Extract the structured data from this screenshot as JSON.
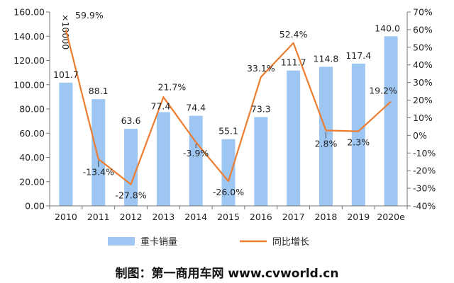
{
  "chart_data": {
    "type": "bar+line",
    "categories": [
      "2010",
      "2011",
      "2012",
      "2013",
      "2014",
      "2015",
      "2016",
      "2017",
      "2018",
      "2019",
      "2020e"
    ],
    "series": [
      {
        "name": "重卡销量",
        "type": "bar",
        "axis": "left",
        "color": "#9dc6f2",
        "values": [
          101.7,
          88.1,
          63.6,
          77.4,
          74.4,
          55.1,
          73.3,
          111.7,
          114.8,
          117.4,
          140.0
        ],
        "labels": [
          "101.7",
          "88.1",
          "63.6",
          "77.4",
          "74.4",
          "55.1",
          "73.3",
          "111.7",
          "114.8",
          "117.4",
          "140.0"
        ]
      },
      {
        "name": "同比增长",
        "type": "line",
        "axis": "right",
        "color": "#ed7d31",
        "values": [
          59.9,
          -13.4,
          -27.8,
          21.7,
          -3.9,
          -26.0,
          33.1,
          52.4,
          2.8,
          2.3,
          19.2
        ],
        "labels": [
          "59.9%",
          "-13.4%",
          "-27.8%",
          "21.7%",
          "-3.9%",
          "-26.0%",
          "33.1%",
          "52.4%",
          "2.8%",
          "2.3%",
          "19.2%"
        ]
      }
    ],
    "left_axis": {
      "unit": "×10000",
      "ylim": [
        0,
        160
      ],
      "ticks": [
        "0.00",
        "20.00",
        "40.00",
        "60.00",
        "80.00",
        "100.00",
        "120.00",
        "140.00",
        "160.00"
      ]
    },
    "right_axis": {
      "ylim": [
        -40,
        70
      ],
      "ticks": [
        "-40%",
        "-30%",
        "-20%",
        "-10%",
        "0%",
        "10%",
        "20%",
        "30%",
        "40%",
        "50%",
        "60%",
        "70%"
      ]
    },
    "legend": {
      "position": "bottom"
    },
    "grid": false
  },
  "caption": "制图：第一商用车网 www.cvworld.cn"
}
